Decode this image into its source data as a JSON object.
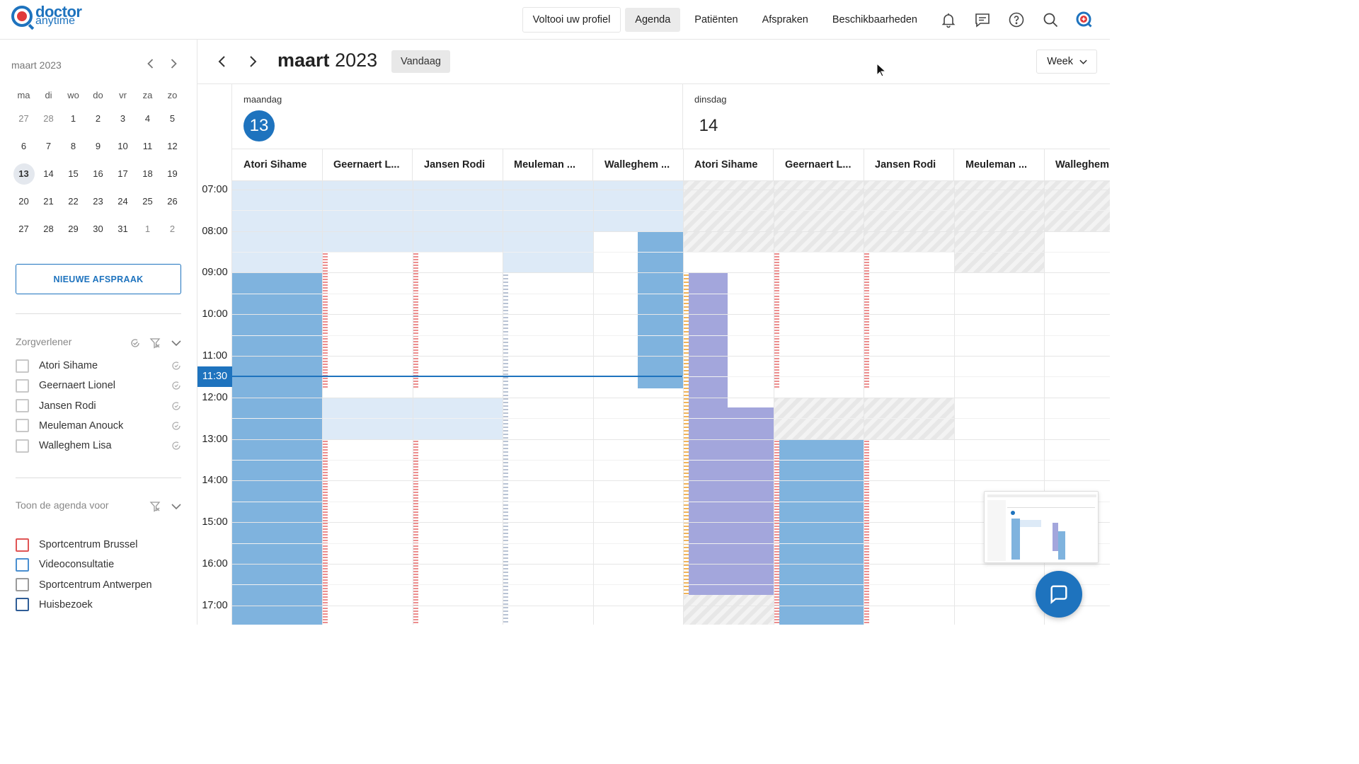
{
  "brand": {
    "line1": "doctor",
    "line2": "anytime",
    "primary": "#1e73be",
    "accent": "#e03a3a"
  },
  "topnav": {
    "items": [
      {
        "label": "Voltooi uw profiel",
        "style": "outline"
      },
      {
        "label": "Agenda",
        "style": "active"
      },
      {
        "label": "Patiënten",
        "style": "plain"
      },
      {
        "label": "Afspraken",
        "style": "plain"
      },
      {
        "label": "Beschikbaarheden",
        "style": "plain"
      }
    ],
    "icons": [
      "bell-icon",
      "message-icon",
      "help-icon",
      "search-icon",
      "doctor-profile-icon"
    ]
  },
  "mini_calendar": {
    "title": "maart 2023",
    "weekdays": [
      "ma",
      "di",
      "wo",
      "do",
      "vr",
      "za",
      "zo"
    ],
    "weeks": [
      [
        "27",
        "28",
        "1",
        "2",
        "3",
        "4",
        "5"
      ],
      [
        "6",
        "7",
        "8",
        "9",
        "10",
        "11",
        "12"
      ],
      [
        "13",
        "14",
        "15",
        "16",
        "17",
        "18",
        "19"
      ],
      [
        "20",
        "21",
        "22",
        "23",
        "24",
        "25",
        "26"
      ],
      [
        "27",
        "28",
        "29",
        "30",
        "31",
        "1",
        "2"
      ]
    ],
    "selected": "13"
  },
  "sidebar": {
    "new_button": "NIEUWE AFSPRAAK",
    "providers_title": "Zorgverlener",
    "providers": [
      "Atori Sihame",
      "Geernaert Lionel",
      "Jansen Rodi",
      "Meuleman Anouck",
      "Walleghem Lisa"
    ],
    "locations_title": "Toon de agenda voor",
    "locations": [
      {
        "label": "Sportcentrum Brussel",
        "color": "#e05555"
      },
      {
        "label": "Videoconsultatie",
        "color": "#4a8fd0"
      },
      {
        "label": "Sportcentrum Antwerpen",
        "color": "#9a9a9a"
      },
      {
        "label": "Huisbezoek",
        "color": "#2f5d96"
      }
    ]
  },
  "toolbar": {
    "month": "maart",
    "year": "2023",
    "today": "Vandaag",
    "view": "Week"
  },
  "days": [
    {
      "name": "maandag",
      "number": "13",
      "is_today": true
    },
    {
      "name": "dinsdag",
      "number": "14",
      "is_today": false
    }
  ],
  "resources": [
    "Atori Sihame",
    "Geernaert L...",
    "Jansen Rodi",
    "Meuleman ...",
    "Walleghem ...",
    "Atori Sihame",
    "Geernaert L...",
    "Jansen Rodi",
    "Meuleman ...",
    "Walleghem"
  ],
  "time_labels": [
    "07:00",
    "08:00",
    "09:00",
    "10:00",
    "11:00",
    "11:30",
    "12:00",
    "13:00",
    "14:00",
    "15:00",
    "16:00",
    "17:00"
  ],
  "current_time": "11:30"
}
